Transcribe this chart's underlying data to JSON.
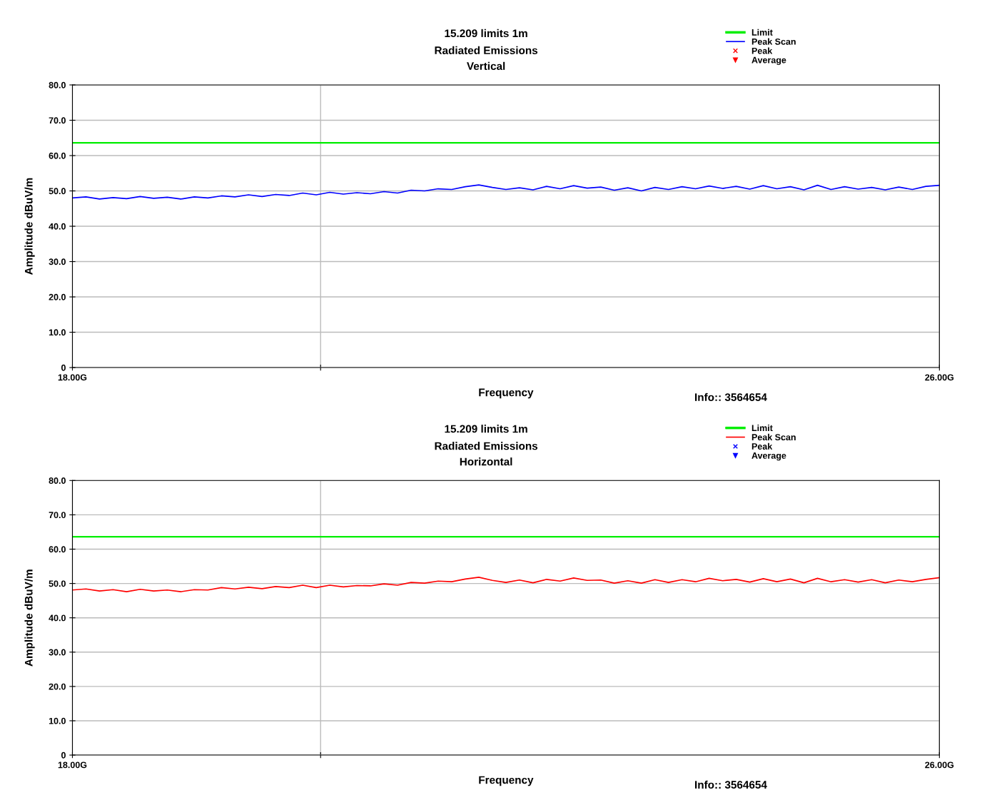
{
  "chart_data": [
    {
      "type": "line",
      "title": "15.209 limits 1m",
      "subtitle": "Radiated Emissions\nVertical",
      "xlabel": "Frequency",
      "ylabel": "Amplitude dBuV/m",
      "annotations": [
        "Info:: 3564654"
      ],
      "xlim": [
        18,
        26
      ],
      "xticks": [
        {
          "value": 18,
          "label": "18.00G"
        },
        {
          "value": 20.29,
          "label": null
        },
        {
          "value": 26,
          "label": "26.00G"
        }
      ],
      "ylim": [
        0,
        80
      ],
      "yticks": [
        {
          "value": 0,
          "label": "0"
        },
        {
          "value": 10,
          "label": "10.0"
        },
        {
          "value": 20,
          "label": "20.0"
        },
        {
          "value": 30,
          "label": "30.0"
        },
        {
          "value": 40,
          "label": "40.0"
        },
        {
          "value": 50,
          "label": "50.0"
        },
        {
          "value": 60,
          "label": "60.0"
        },
        {
          "value": 70,
          "label": "70.0"
        },
        {
          "value": 80,
          "label": "80.0"
        }
      ],
      "grid": true,
      "legend": "top right",
      "marker": "none",
      "series": [
        {
          "name": "Limit",
          "color": "#00ee00",
          "x": [
            18,
            26
          ],
          "values": [
            63.6,
            63.6
          ]
        },
        {
          "name": "Peak Scan",
          "color": "#0000ff",
          "x": [
            18,
            18.125,
            18.25,
            18.375,
            18.5,
            18.625,
            18.75,
            18.875,
            19,
            19.125,
            19.25,
            19.375,
            19.5,
            19.625,
            19.75,
            19.875,
            20,
            20.125,
            20.25,
            20.375,
            20.5,
            20.625,
            20.75,
            20.875,
            21,
            21.125,
            21.25,
            21.375,
            21.5,
            21.625,
            21.75,
            21.875,
            22,
            22.125,
            22.25,
            22.375,
            22.5,
            22.625,
            22.75,
            22.875,
            23,
            23.125,
            23.25,
            23.375,
            23.5,
            23.625,
            23.75,
            23.875,
            24,
            24.125,
            24.25,
            24.375,
            24.5,
            24.625,
            24.75,
            24.875,
            25,
            25.125,
            25.25,
            25.375,
            25.5,
            25.625,
            25.75,
            25.875,
            26
          ],
          "values": [
            48.0,
            48.3,
            47.7,
            48.1,
            47.8,
            48.4,
            47.9,
            48.2,
            47.7,
            48.3,
            48.0,
            48.6,
            48.3,
            48.9,
            48.4,
            49.0,
            48.7,
            49.4,
            48.9,
            49.6,
            49.1,
            49.5,
            49.2,
            49.8,
            49.4,
            50.2,
            50.0,
            50.6,
            50.4,
            51.2,
            51.7,
            51.0,
            50.4,
            50.9,
            50.3,
            51.3,
            50.6,
            51.5,
            50.8,
            51.1,
            50.2,
            50.9,
            50.0,
            51.0,
            50.4,
            51.2,
            50.6,
            51.4,
            50.7,
            51.3,
            50.5,
            51.5,
            50.6,
            51.2,
            50.3,
            51.6,
            50.4,
            51.2,
            50.5,
            51.0,
            50.3,
            51.1,
            50.4,
            51.3,
            51.6
          ]
        },
        {
          "name": "Peak",
          "type": "scatter",
          "marker": "cross",
          "color": "#ff0000"
        },
        {
          "name": "Average",
          "type": "scatter",
          "marker": "triangle",
          "color": "#ff0000"
        }
      ]
    },
    {
      "type": "line",
      "title": "15.209 limits 1m",
      "subtitle": "Radiated Emissions\nHorizontal",
      "xlabel": "Frequency",
      "ylabel": "Amplitude dBuV/m",
      "annotations": [
        "Info:: 3564654"
      ],
      "xlim": [
        18,
        26
      ],
      "xticks": [
        {
          "value": 18,
          "label": "18.00G"
        },
        {
          "value": 20.29,
          "label": null
        },
        {
          "value": 26,
          "label": "26.00G"
        }
      ],
      "ylim": [
        0,
        80
      ],
      "yticks": [
        {
          "value": 0,
          "label": "0"
        },
        {
          "value": 10,
          "label": "10.0"
        },
        {
          "value": 20,
          "label": "20.0"
        },
        {
          "value": 30,
          "label": "30.0"
        },
        {
          "value": 40,
          "label": "40.0"
        },
        {
          "value": 50,
          "label": "50.0"
        },
        {
          "value": 60,
          "label": "60.0"
        },
        {
          "value": 70,
          "label": "70.0"
        },
        {
          "value": 80,
          "label": "80.0"
        }
      ],
      "grid": true,
      "legend": "top right",
      "marker": "none",
      "series": [
        {
          "name": "Limit",
          "color": "#00ee00",
          "x": [
            18,
            26
          ],
          "values": [
            63.6,
            63.6
          ]
        },
        {
          "name": "Peak Scan",
          "color": "#ff0000",
          "x": [
            18,
            18.125,
            18.25,
            18.375,
            18.5,
            18.625,
            18.75,
            18.875,
            19,
            19.125,
            19.25,
            19.375,
            19.5,
            19.625,
            19.75,
            19.875,
            20,
            20.125,
            20.25,
            20.375,
            20.5,
            20.625,
            20.75,
            20.875,
            21,
            21.125,
            21.25,
            21.375,
            21.5,
            21.625,
            21.75,
            21.875,
            22,
            22.125,
            22.25,
            22.375,
            22.5,
            22.625,
            22.75,
            22.875,
            23,
            23.125,
            23.25,
            23.375,
            23.5,
            23.625,
            23.75,
            23.875,
            24,
            24.125,
            24.25,
            24.375,
            24.5,
            24.625,
            24.75,
            24.875,
            25,
            25.125,
            25.25,
            25.375,
            25.5,
            25.625,
            25.75,
            25.875,
            26
          ],
          "values": [
            48.1,
            48.4,
            47.8,
            48.2,
            47.6,
            48.3,
            47.8,
            48.1,
            47.6,
            48.2,
            48.1,
            48.8,
            48.4,
            48.9,
            48.5,
            49.1,
            48.8,
            49.5,
            48.8,
            49.5,
            49.0,
            49.4,
            49.3,
            49.9,
            49.5,
            50.3,
            50.1,
            50.7,
            50.5,
            51.3,
            51.8,
            50.9,
            50.3,
            51.0,
            50.2,
            51.2,
            50.7,
            51.6,
            50.9,
            51.0,
            50.1,
            50.8,
            50.1,
            51.1,
            50.3,
            51.1,
            50.5,
            51.5,
            50.8,
            51.2,
            50.4,
            51.4,
            50.5,
            51.3,
            50.2,
            51.5,
            50.5,
            51.1,
            50.4,
            51.1,
            50.2,
            51.0,
            50.5,
            51.2,
            51.7
          ]
        },
        {
          "name": "Peak",
          "type": "scatter",
          "marker": "cross",
          "color": "#0000ff"
        },
        {
          "name": "Average",
          "type": "scatter",
          "marker": "triangle",
          "color": "#0000ff"
        }
      ]
    }
  ]
}
